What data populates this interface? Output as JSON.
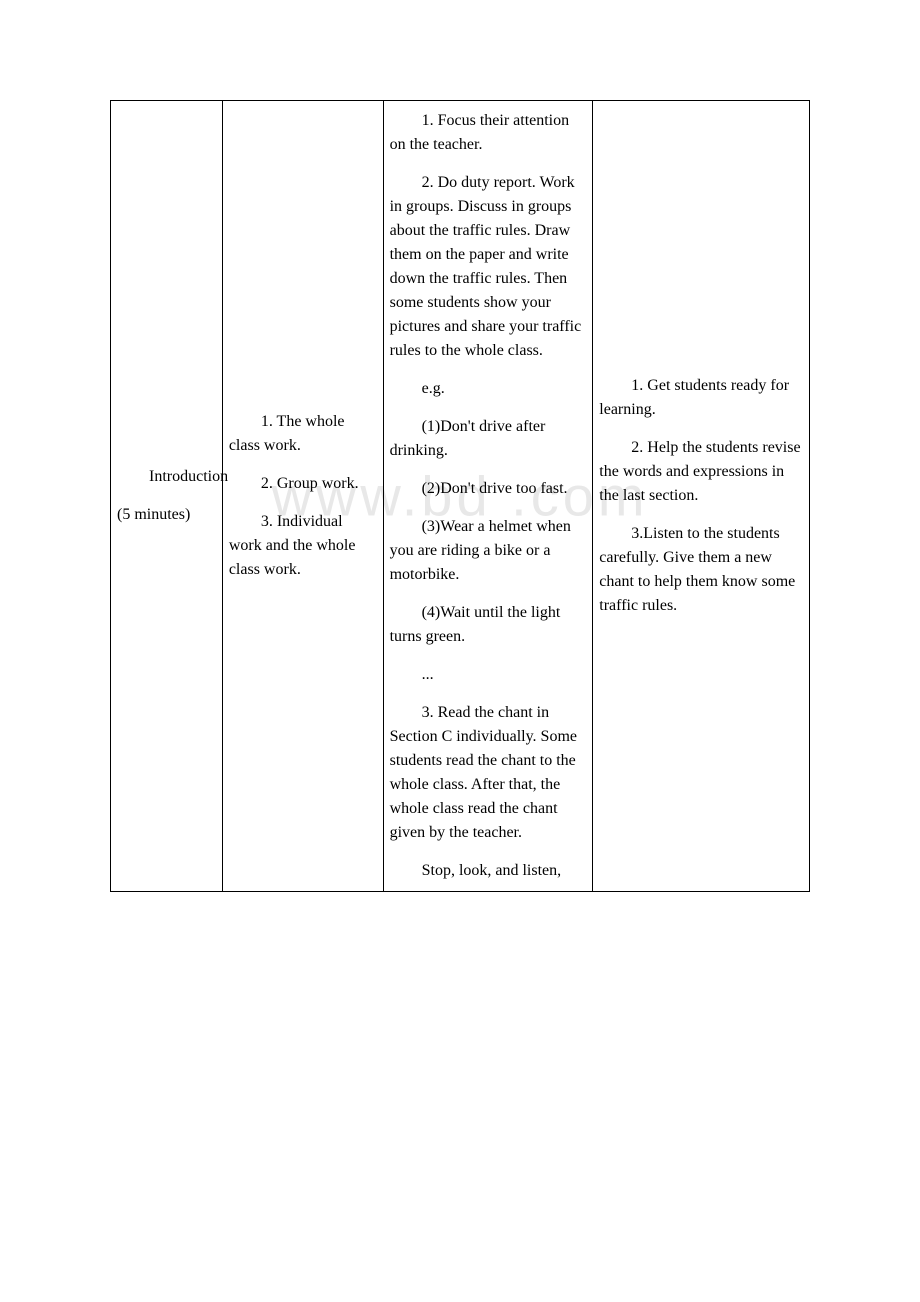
{
  "watermark": "www.bd   .com",
  "table": {
    "row": {
      "col1": {
        "line1": "Introduction",
        "line2": "(5 minutes)"
      },
      "col2": {
        "p1": "1. The whole class work.",
        "p2": "2. Group work.",
        "p3": "3. Individual work and the whole class work."
      },
      "col3": {
        "p1": "1. Focus their attention on the teacher.",
        "p2": "2. Do duty report. Work in groups. Discuss in groups about the traffic rules. Draw them on the paper and write down the traffic rules. Then some students show your pictures and share your traffic rules to the whole class.",
        "p3": "e.g.",
        "p4": "(1)Don't drive after drinking.",
        "p5": "(2)Don't drive too fast.",
        "p6": "(3)Wear a helmet when you are riding a bike or a motorbike.",
        "p7": "(4)Wait until the light turns green.",
        "p8": "...",
        "p9": "3. Read the chant in Section C individually. Some students read the chant to the whole class. After that, the whole class read the chant given by the teacher.",
        "p10": "Stop, look, and listen,"
      },
      "col4": {
        "p1": "1. Get students ready for learning.",
        "p2": "2. Help the students revise the words and expressions in the last section.",
        "p3": "3.Listen to the students carefully. Give them a new chant to help them know some traffic rules."
      }
    }
  }
}
